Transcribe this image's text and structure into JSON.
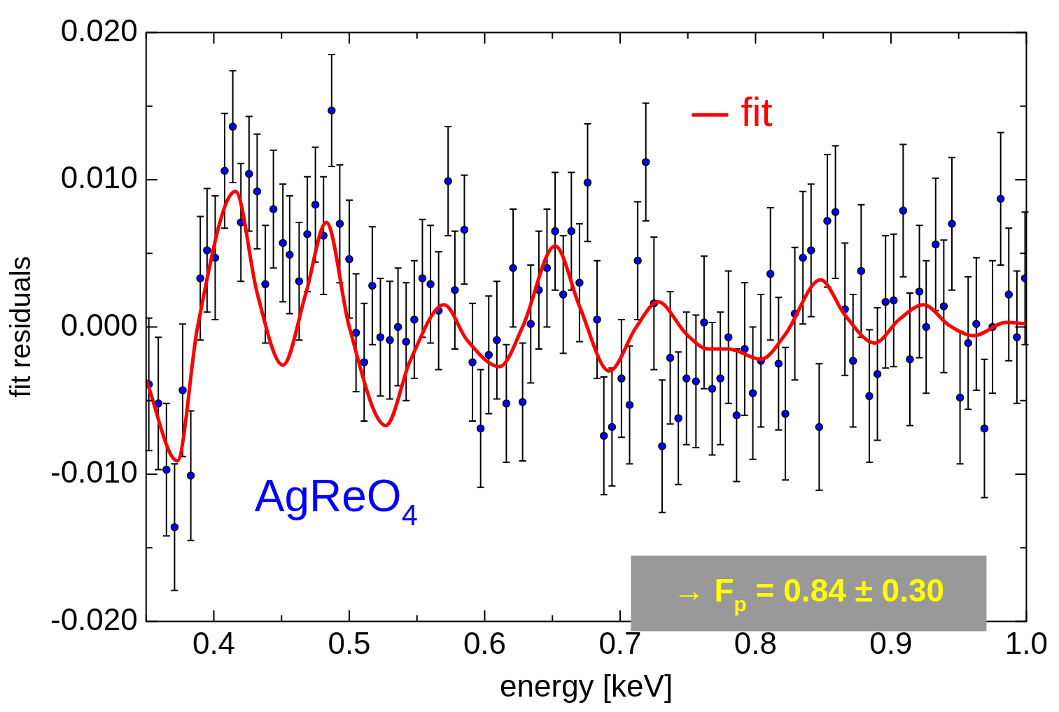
{
  "chart_data": {
    "type": "scatter",
    "xlabel": "energy [keV]",
    "ylabel": "fit residuals",
    "xlim": [
      0.35,
      1.0
    ],
    "ylim": [
      -0.02,
      0.02
    ],
    "xticks": [
      {
        "value": 0.35,
        "label": null
      },
      0.4,
      {
        "value": 0.45,
        "label": null
      },
      0.5,
      {
        "value": 0.55,
        "label": null
      },
      0.6,
      {
        "value": 0.65,
        "label": null
      },
      0.7,
      {
        "value": 0.75,
        "label": null
      },
      0.8,
      {
        "value": 0.85,
        "label": null
      },
      0.9,
      {
        "value": 0.95,
        "label": null
      },
      {
        "value": 1.0,
        "label": "1.0"
      }
    ],
    "yticks": [
      {
        "value": -0.02,
        "label": "-0.020"
      },
      {
        "value": -0.015,
        "label": null
      },
      {
        "value": -0.01,
        "label": "-0.010"
      },
      {
        "value": -0.005,
        "label": null
      },
      {
        "value": 0,
        "label": "0.000"
      },
      {
        "value": 0.005,
        "label": null
      },
      {
        "value": 0.01,
        "label": "0.010"
      },
      {
        "value": 0.015,
        "label": null
      },
      {
        "value": 0.02,
        "label": "0.020"
      }
    ],
    "grid": false,
    "legend": "top right",
    "annotations": [
      "AgReO$_{4}$",
      "→ F$_{p}$ = 0.84 ± 0.30"
    ],
    "series": [
      {
        "color": "#0000ff",
        "marker": "circle",
        "x": [
          0.352,
          0.359,
          0.365,
          0.371,
          0.377,
          0.383,
          0.39,
          0.395,
          0.401,
          0.408,
          0.414,
          0.42,
          0.426,
          0.432,
          0.438,
          0.444,
          0.451,
          0.456,
          0.463,
          0.469,
          0.475,
          0.481,
          0.487,
          0.493,
          0.5,
          0.505,
          0.511,
          0.517,
          0.523,
          0.53,
          0.536,
          0.542,
          0.548,
          0.554,
          0.56,
          0.566,
          0.573,
          0.578,
          0.585,
          0.591,
          0.597,
          0.603,
          0.609,
          0.616,
          0.621,
          0.628,
          0.634,
          0.64,
          0.646,
          0.652,
          0.658,
          0.664,
          0.67,
          0.676,
          0.683,
          0.688,
          0.694,
          0.701,
          0.707,
          0.713,
          0.719,
          0.725,
          0.731,
          0.737,
          0.743,
          0.749,
          0.756,
          0.762,
          0.768,
          0.774,
          0.78,
          0.786,
          0.792,
          0.798,
          0.804,
          0.811,
          0.817,
          0.822,
          0.829,
          0.835,
          0.841,
          0.847,
          0.853,
          0.859,
          0.866,
          0.872,
          0.878,
          0.884,
          0.89,
          0.896,
          0.902,
          0.909,
          0.914,
          0.921,
          0.926,
          0.933,
          0.939,
          0.945,
          0.951,
          0.957,
          0.963,
          0.969,
          0.975,
          0.981,
          0.987,
          0.993,
          0.999
        ],
        "values": [
          -0.0039,
          -0.0052,
          -0.0097,
          -0.0136,
          -0.0043,
          -0.0101,
          0.0033,
          0.0052,
          0.0047,
          0.0106,
          0.0136,
          0.0071,
          0.0104,
          0.0092,
          0.0029,
          0.008,
          0.0057,
          0.0049,
          0.0031,
          0.0063,
          0.0083,
          0.0062,
          0.0147,
          0.007,
          0.0046,
          -0.0004,
          -0.0024,
          0.0028,
          -0.0007,
          -0.0009,
          0.0,
          -0.001,
          0.0005,
          0.0033,
          0.0029,
          0.0011,
          0.0099,
          0.0025,
          0.0066,
          -0.0024,
          -0.0069,
          -0.0019,
          -0.0009,
          -0.0052,
          0.004,
          -0.0051,
          0.0002,
          0.0025,
          0.004,
          0.0065,
          0.0022,
          0.0065,
          0.003,
          0.0098,
          0.0005,
          -0.0074,
          -0.0068,
          -0.0035,
          -0.0053,
          0.0045,
          0.0112,
          0.0016,
          -0.0081,
          -0.0021,
          -0.0062,
          -0.0035,
          -0.0037,
          0.0003,
          -0.0042,
          -0.0035,
          -0.0007,
          -0.006,
          -0.0015,
          -0.0045,
          -0.0023,
          0.0036,
          -0.0025,
          -0.0059,
          0.0009,
          0.0047,
          0.0052,
          -0.0068,
          0.0072,
          0.0078,
          0.0012,
          -0.0023,
          0.0038,
          -0.0047,
          -0.0032,
          0.0017,
          0.0018,
          0.0079,
          -0.0022,
          0.0024,
          0.0,
          0.0056,
          0.0014,
          0.007,
          -0.0048,
          -0.0011,
          0.0002,
          -0.0069,
          0.0,
          0.0087,
          0.0022,
          -0.0007,
          0.0033
        ],
        "errors": [
          0.0045,
          0.0045,
          0.0045,
          0.0043,
          0.0045,
          0.0044,
          0.0042,
          0.0042,
          0.0042,
          0.0039,
          0.0038,
          0.004,
          0.0039,
          0.0039,
          0.004,
          0.004,
          0.004,
          0.004,
          0.004,
          0.0039,
          0.0039,
          0.004,
          0.0038,
          0.004,
          0.004,
          0.004,
          0.004,
          0.004,
          0.004,
          0.004,
          0.004,
          0.004,
          0.004,
          0.004,
          0.004,
          0.004,
          0.0037,
          0.004,
          0.0037,
          0.004,
          0.004,
          0.004,
          0.004,
          0.004,
          0.004,
          0.004,
          0.004,
          0.004,
          0.004,
          0.004,
          0.004,
          0.004,
          0.004,
          0.004,
          0.004,
          0.004,
          0.004,
          0.004,
          0.004,
          0.004,
          0.004,
          0.0045,
          0.0045,
          0.0045,
          0.0045,
          0.0045,
          0.0045,
          0.0045,
          0.0045,
          0.0045,
          0.0045,
          0.0045,
          0.0045,
          0.0045,
          0.0045,
          0.0045,
          0.0045,
          0.0045,
          0.0045,
          0.0045,
          0.0045,
          0.0043,
          0.0045,
          0.0045,
          0.0045,
          0.0045,
          0.0045,
          0.0045,
          0.0045,
          0.0045,
          0.0045,
          0.0045,
          0.0045,
          0.0045,
          0.0045,
          0.0045,
          0.0045,
          0.0045,
          0.0045,
          0.0045,
          0.0045,
          0.0047,
          0.0045,
          0.0045,
          0.0045,
          0.0045,
          0.0045
        ]
      },
      {
        "type": "line",
        "name": "fit",
        "color": "#ff0000",
        "x": [
          0.35,
          0.373,
          0.388,
          0.416,
          0.432,
          0.451,
          0.468,
          0.483,
          0.5,
          0.527,
          0.545,
          0.57,
          0.587,
          0.611,
          0.628,
          0.652,
          0.67,
          0.692,
          0.712,
          0.728,
          0.749,
          0.765,
          0.78,
          0.804,
          0.822,
          0.848,
          0.866,
          0.888,
          0.906,
          0.924,
          0.943,
          0.961,
          0.985,
          1.0
        ],
        "values": [
          -0.0036,
          -0.0091,
          0.0,
          0.0092,
          0.0023,
          -0.0026,
          0.0023,
          0.0071,
          0.0,
          -0.0067,
          -0.0023,
          0.0015,
          -0.0009,
          -0.0027,
          0.0,
          0.0055,
          0.0014,
          -0.003,
          0.0,
          0.0017,
          -0.0005,
          -0.0015,
          -0.0015,
          -0.0022,
          -0.0005,
          0.0032,
          0.0008,
          -0.0011,
          0.0005,
          0.0015,
          0.0001,
          -0.0006,
          0.0003,
          0.0002
        ]
      }
    ]
  }
}
